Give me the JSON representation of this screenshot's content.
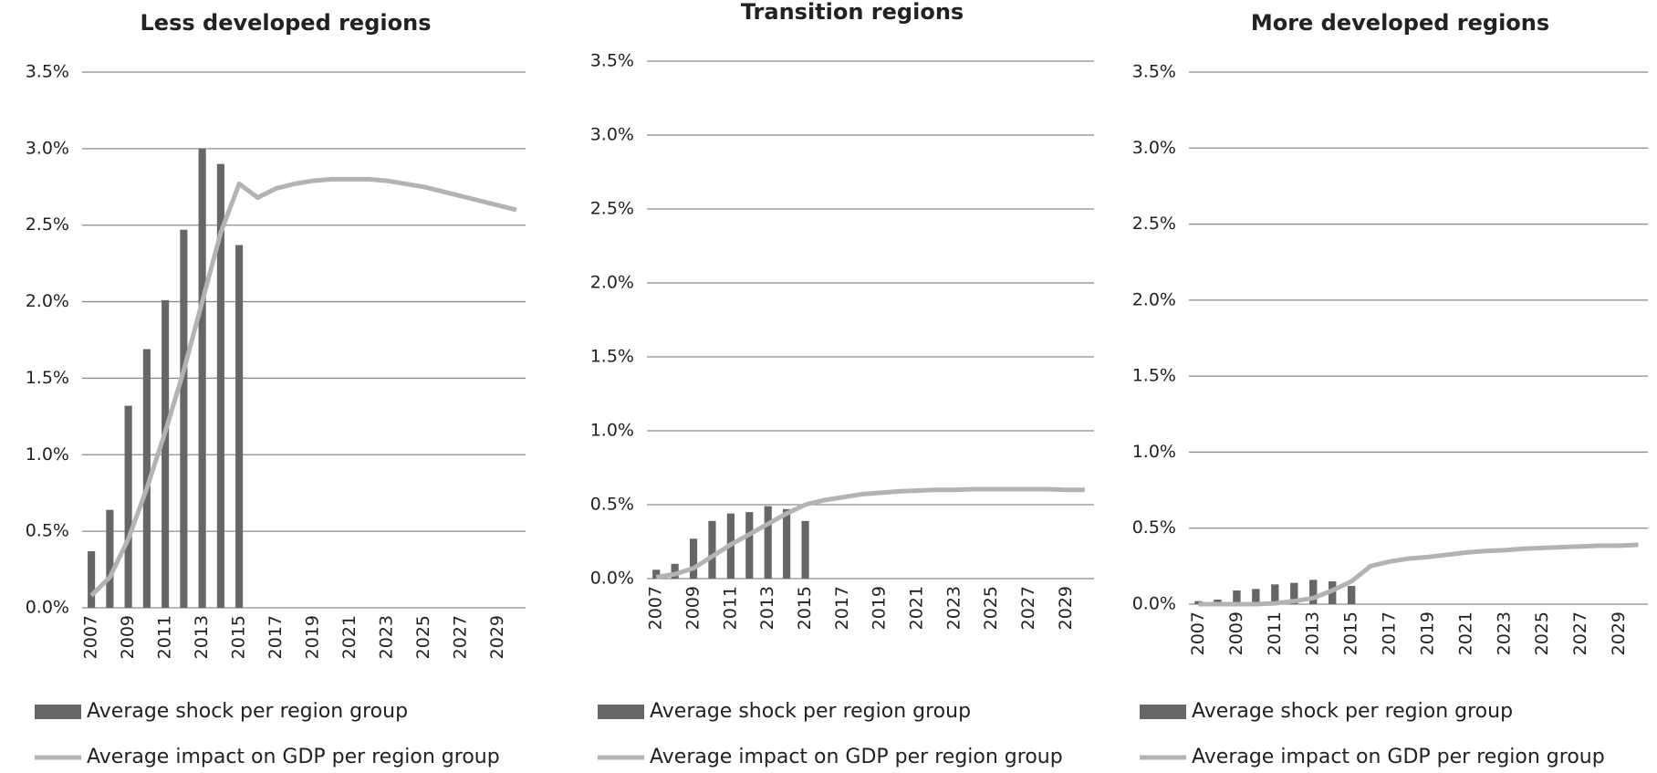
{
  "chart_data": [
    {
      "type": "combo",
      "title": "Less developed regions",
      "categories": [
        "2007",
        null,
        "2009",
        null,
        "2011",
        null,
        "2013",
        null,
        "2015",
        null,
        "2017",
        null,
        "2019",
        null,
        "2021",
        null,
        "2023",
        null,
        "2025",
        null,
        "2027",
        null,
        "2029",
        null
      ],
      "series": [
        {
          "name": "Average shock per region group",
          "type": "bar",
          "color": "#666666",
          "values": [
            0.37,
            0.64,
            1.32,
            1.69,
            2.01,
            2.47,
            3.0,
            2.9,
            2.37,
            null,
            null,
            null,
            null,
            null,
            null,
            null,
            null,
            null,
            null,
            null,
            null,
            null,
            null,
            null
          ]
        },
        {
          "name": "Average impact on GDP  per region group",
          "type": "line",
          "color": "#b3b3b3",
          "values": [
            0.08,
            0.2,
            0.45,
            0.78,
            1.15,
            1.55,
            2.0,
            2.45,
            2.77,
            2.68,
            2.74,
            2.77,
            2.79,
            2.8,
            2.8,
            2.8,
            2.79,
            2.77,
            2.75,
            2.72,
            2.69,
            2.66,
            2.63,
            2.6
          ]
        }
      ],
      "ylim": [
        0,
        3.5
      ],
      "yticks": [
        {
          "value": 0,
          "label": "0.0%"
        },
        {
          "value": 0.5,
          "label": "0.5%"
        },
        {
          "value": 1,
          "label": "1.0%"
        },
        {
          "value": 1.5,
          "label": "1.5%"
        },
        {
          "value": 2,
          "label": "2.0%"
        },
        {
          "value": 2.5,
          "label": "2.5%"
        },
        {
          "value": 3,
          "label": "3.0%"
        },
        {
          "value": 3.5,
          "label": "3.5%"
        }
      ],
      "grid": true
    },
    {
      "type": "combo",
      "title": "Transition regions",
      "categories": [
        "2007",
        null,
        "2009",
        null,
        "2011",
        null,
        "2013",
        null,
        "2015",
        null,
        "2017",
        null,
        "2019",
        null,
        "2021",
        null,
        "2023",
        null,
        "2025",
        null,
        "2027",
        null,
        "2029",
        null
      ],
      "series": [
        {
          "name": "Average shock per region group",
          "type": "bar",
          "color": "#666666",
          "values": [
            0.06,
            0.1,
            0.27,
            0.39,
            0.44,
            0.45,
            0.49,
            0.47,
            0.39,
            null,
            null,
            null,
            null,
            null,
            null,
            null,
            null,
            null,
            null,
            null,
            null,
            null,
            null,
            null
          ]
        },
        {
          "name": "Average impact on GDP  per region group",
          "type": "line",
          "color": "#b3b3b3",
          "values": [
            0.01,
            0.03,
            0.07,
            0.15,
            0.23,
            0.3,
            0.37,
            0.44,
            0.5,
            0.53,
            0.55,
            0.57,
            0.58,
            0.59,
            0.595,
            0.6,
            0.6,
            0.605,
            0.605,
            0.605,
            0.605,
            0.605,
            0.6,
            0.6
          ]
        }
      ],
      "ylim": [
        0,
        3.5
      ],
      "yticks": [
        {
          "value": 0,
          "label": "0.0%"
        },
        {
          "value": 0.5,
          "label": "0.5%"
        },
        {
          "value": 1,
          "label": "1.0%"
        },
        {
          "value": 1.5,
          "label": "1.5%"
        },
        {
          "value": 2,
          "label": "2.0%"
        },
        {
          "value": 2.5,
          "label": "2.5%"
        },
        {
          "value": 3,
          "label": "3.0%"
        },
        {
          "value": 3.5,
          "label": "3.5%"
        }
      ],
      "grid": true
    },
    {
      "type": "combo",
      "title": "More developed regions",
      "categories": [
        "2007",
        null,
        "2009",
        null,
        "2011",
        null,
        "2013",
        null,
        "2015",
        null,
        "2017",
        null,
        "2019",
        null,
        "2021",
        null,
        "2023",
        null,
        "2025",
        null,
        "2027",
        null,
        "2029",
        null
      ],
      "series": [
        {
          "name": "Average shock per region group",
          "type": "bar",
          "color": "#666666",
          "values": [
            0.02,
            0.03,
            0.09,
            0.1,
            0.13,
            0.14,
            0.16,
            0.15,
            0.12,
            null,
            null,
            null,
            null,
            null,
            null,
            null,
            null,
            null,
            null,
            null,
            null,
            null,
            null,
            null
          ]
        },
        {
          "name": "Average impact on GDP  per region group",
          "type": "line",
          "color": "#b3b3b3",
          "values": [
            0,
            0,
            0,
            0,
            0.005,
            0.02,
            0.04,
            0.09,
            0.15,
            0.25,
            0.28,
            0.3,
            0.31,
            0.325,
            0.34,
            0.35,
            0.355,
            0.365,
            0.37,
            0.375,
            0.38,
            0.385,
            0.385,
            0.39
          ]
        }
      ],
      "ylim": [
        0,
        3.5
      ],
      "yticks": [
        {
          "value": 0,
          "label": "0.0%"
        },
        {
          "value": 0.5,
          "label": "0.5%"
        },
        {
          "value": 1,
          "label": "1.0%"
        },
        {
          "value": 1.5,
          "label": "1.5%"
        },
        {
          "value": 2,
          "label": "2.0%"
        },
        {
          "value": 2.5,
          "label": "2.5%"
        },
        {
          "value": 3,
          "label": "3.0%"
        },
        {
          "value": 3.5,
          "label": "3.5%"
        }
      ],
      "grid": true
    }
  ]
}
